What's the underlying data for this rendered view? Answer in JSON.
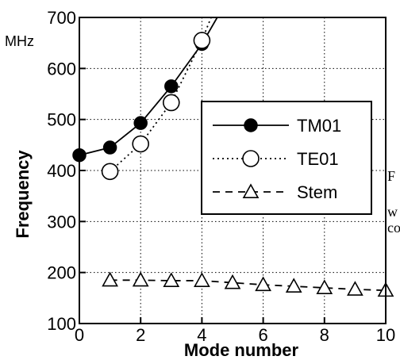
{
  "chart_data": {
    "type": "line",
    "title": "",
    "xlabel": "Mode number",
    "ylabel": "Frequency",
    "yunit": "MHz",
    "xlim": [
      0,
      10
    ],
    "ylim": [
      100,
      700
    ],
    "xticks": [
      "0",
      "2",
      "4",
      "6",
      "8",
      "10"
    ],
    "yticks": [
      "100",
      "200",
      "300",
      "400",
      "500",
      "600",
      "700"
    ],
    "grid": true,
    "legend_position": "center-right",
    "series": [
      {
        "name": "TM01",
        "style": "solid line, filled circle markers",
        "x": [
          0,
          1,
          2,
          3,
          4,
          4.5
        ],
        "y": [
          430,
          445,
          493,
          565,
          648,
          700
        ],
        "markers": [
          true,
          true,
          true,
          true,
          true,
          false
        ]
      },
      {
        "name": "TE01",
        "style": "dotted line, open circle markers",
        "x": [
          1,
          2,
          3,
          4,
          4.3
        ],
        "y": [
          398,
          452,
          533,
          655,
          700
        ],
        "markers": [
          true,
          true,
          true,
          true,
          false
        ]
      },
      {
        "name": "Stem",
        "style": "dashed line, open triangle markers",
        "x": [
          1,
          2,
          3,
          4,
          5,
          6,
          7,
          8,
          9,
          10
        ],
        "y": [
          185,
          185,
          184,
          184,
          180,
          176,
          173,
          170,
          167,
          165
        ],
        "markers": [
          true,
          true,
          true,
          true,
          true,
          true,
          true,
          true,
          true,
          true
        ]
      }
    ]
  },
  "side_text": [
    "F",
    "w",
    "co"
  ],
  "colors": {
    "line": "#000000",
    "grid": "#000000",
    "background": "#ffffff"
  }
}
